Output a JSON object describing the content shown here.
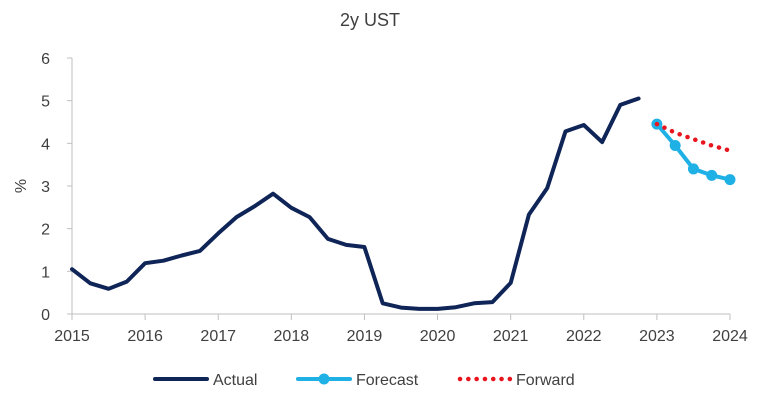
{
  "chart_data": {
    "type": "line",
    "title": "2y UST",
    "ylabel": "%",
    "xlabel": "",
    "xlim": [
      2015,
      2024
    ],
    "ylim": [
      0,
      6
    ],
    "x_ticks": [
      "2015",
      "2016",
      "2017",
      "2018",
      "2019",
      "2020",
      "2021",
      "2022",
      "2023",
      "2024"
    ],
    "y_ticks": [
      "0",
      "1",
      "2",
      "3",
      "4",
      "5",
      "6"
    ],
    "grid": false,
    "legend_position": "bottom",
    "series": [
      {
        "name": "Actual",
        "color": "#0f2557",
        "style": "solid",
        "points": [
          [
            2015.0,
            1.05
          ],
          [
            2015.25,
            0.72
          ],
          [
            2015.5,
            0.59
          ],
          [
            2015.75,
            0.76
          ],
          [
            2016.0,
            1.19
          ],
          [
            2016.25,
            1.25
          ],
          [
            2016.5,
            1.37
          ],
          [
            2016.75,
            1.48
          ],
          [
            2017.0,
            1.89
          ],
          [
            2017.25,
            2.27
          ],
          [
            2017.5,
            2.53
          ],
          [
            2017.75,
            2.82
          ],
          [
            2018.0,
            2.49
          ],
          [
            2018.25,
            2.27
          ],
          [
            2018.5,
            1.76
          ],
          [
            2018.75,
            1.62
          ],
          [
            2019.0,
            1.57
          ],
          [
            2019.25,
            0.25
          ],
          [
            2019.5,
            0.15
          ],
          [
            2019.75,
            0.12
          ],
          [
            2020.0,
            0.12
          ],
          [
            2020.25,
            0.16
          ],
          [
            2020.5,
            0.25
          ],
          [
            2020.75,
            0.28
          ],
          [
            2021.0,
            0.73
          ],
          [
            2021.25,
            2.33
          ],
          [
            2021.5,
            2.95
          ],
          [
            2021.75,
            4.28
          ],
          [
            2022.0,
            4.43
          ],
          [
            2022.25,
            4.03
          ],
          [
            2022.5,
            4.9
          ],
          [
            2022.75,
            5.05
          ]
        ]
      },
      {
        "name": "Forecast",
        "color": "#1fb0e6",
        "style": "solid-markers",
        "points": [
          [
            2023.0,
            4.45
          ],
          [
            2023.25,
            3.95
          ],
          [
            2023.5,
            3.4
          ],
          [
            2023.75,
            3.25
          ],
          [
            2024.0,
            3.15
          ]
        ]
      },
      {
        "name": "Forward",
        "color": "#e8141e",
        "style": "dotted",
        "points": [
          [
            2023.0,
            4.45
          ],
          [
            2023.25,
            4.25
          ],
          [
            2023.5,
            4.1
          ],
          [
            2023.75,
            3.95
          ],
          [
            2024.0,
            3.83
          ]
        ]
      }
    ]
  }
}
